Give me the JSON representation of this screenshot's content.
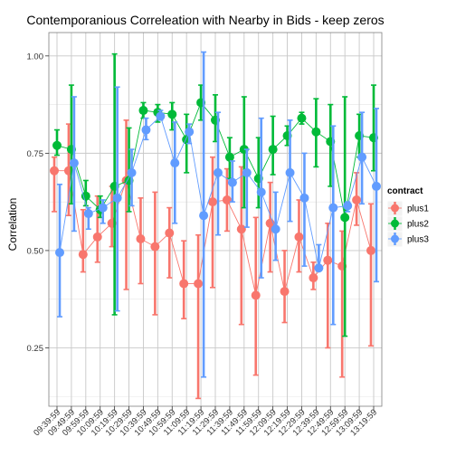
{
  "chart_data": {
    "type": "line",
    "title": "Contemporanious Correleation with Nearby in Bids - keep zeros",
    "xlabel": "",
    "ylabel": "Correlation",
    "ylim": [
      0.1,
      1.06
    ],
    "yticks": [
      0.25,
      0.5,
      0.75,
      1.0
    ],
    "ytick_labels": [
      "0.25",
      "0.50",
      "0.75",
      "1.00"
    ],
    "grid": true,
    "legend": {
      "title": "contract",
      "placement": "right"
    },
    "categories": [
      "09:39:59",
      "09:49:59",
      "09:59:59",
      "10:09:59",
      "10:19:59",
      "10:29:59",
      "10:39:59",
      "10:49:59",
      "10:59:59",
      "11:09:59",
      "11:19:59",
      "11:29:59",
      "11:39:59",
      "11:49:59",
      "11:59:59",
      "12:09:59",
      "12:19:59",
      "12:29:59",
      "12:39:59",
      "12:49:59",
      "12:59:59",
      "13:09:59",
      "13:19:59"
    ],
    "series": [
      {
        "name": "plus1",
        "color": "#F8766D",
        "values": [
          0.705,
          0.705,
          0.49,
          0.535,
          0.57,
          0.68,
          0.53,
          0.51,
          0.545,
          0.415,
          0.415,
          0.625,
          0.63,
          0.555,
          0.385,
          0.57,
          0.395,
          0.535,
          0.43,
          0.475,
          0.46,
          0.63,
          0.5
        ],
        "lower": [
          0.6,
          0.59,
          0.445,
          0.47,
          0.51,
          0.4,
          0.415,
          0.335,
          0.43,
          0.325,
          0.12,
          0.405,
          0.55,
          0.31,
          0.18,
          0.445,
          0.315,
          0.445,
          0.4,
          0.25,
          0.175,
          0.565,
          0.255
        ],
        "upper": [
          0.74,
          0.825,
          0.605,
          0.64,
          0.665,
          0.835,
          0.635,
          0.65,
          0.61,
          0.525,
          0.54,
          0.74,
          0.71,
          0.715,
          0.585,
          0.675,
          0.5,
          0.63,
          0.47,
          0.57,
          0.55,
          0.7,
          0.62
        ]
      },
      {
        "name": "plus2",
        "color": "#00BA38",
        "values": [
          0.77,
          0.76,
          0.64,
          0.605,
          0.665,
          0.68,
          0.86,
          0.855,
          0.85,
          0.785,
          0.88,
          0.835,
          0.74,
          0.76,
          0.685,
          0.76,
          0.795,
          0.84,
          0.805,
          0.78,
          0.585,
          0.795,
          0.79
        ],
        "lower": [
          0.745,
          0.62,
          0.615,
          0.585,
          0.335,
          0.6,
          0.84,
          0.83,
          0.81,
          0.7,
          0.835,
          0.78,
          0.685,
          0.61,
          0.61,
          0.695,
          0.77,
          0.825,
          0.715,
          0.665,
          0.28,
          0.74,
          0.705
        ],
        "upper": [
          0.81,
          0.925,
          0.68,
          0.64,
          1.005,
          0.815,
          0.88,
          0.875,
          0.88,
          0.85,
          0.925,
          0.9,
          0.79,
          0.895,
          0.79,
          0.845,
          0.82,
          0.855,
          0.89,
          0.875,
          0.895,
          0.85,
          0.925
        ]
      },
      {
        "name": "plus3",
        "color": "#619CFF",
        "values": [
          0.495,
          0.725,
          0.595,
          0.61,
          0.635,
          0.7,
          0.81,
          0.845,
          0.725,
          0.805,
          0.59,
          0.7,
          0.675,
          0.7,
          0.65,
          0.555,
          0.7,
          0.635,
          0.455,
          0.61,
          0.615,
          0.74,
          0.665
        ],
        "lower": [
          0.33,
          0.55,
          0.555,
          0.57,
          0.345,
          0.615,
          0.785,
          0.835,
          0.57,
          0.775,
          0.175,
          0.54,
          0.625,
          0.56,
          0.43,
          0.475,
          0.575,
          0.46,
          0.455,
          0.31,
          0.6,
          0.62,
          0.42
        ],
        "upper": [
          0.67,
          0.895,
          0.61,
          0.63,
          0.92,
          0.76,
          0.84,
          0.86,
          0.83,
          0.825,
          1.01,
          0.855,
          0.73,
          0.76,
          0.84,
          0.65,
          0.835,
          0.75,
          0.515,
          0.82,
          0.625,
          0.855,
          0.865
        ]
      }
    ]
  }
}
